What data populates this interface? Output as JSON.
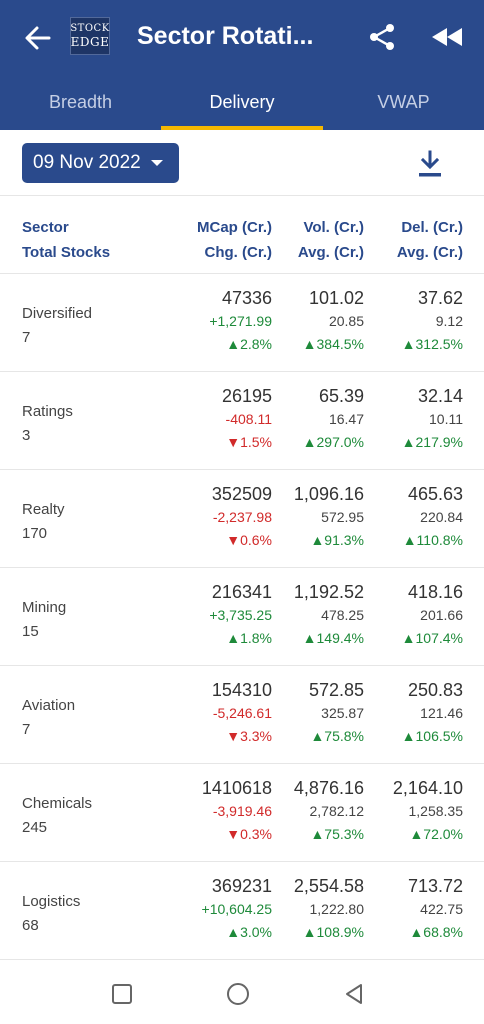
{
  "header": {
    "title": "Sector Rotati...",
    "logo_line1": "STOCK",
    "logo_line2": "EDGE",
    "icons": [
      "back-arrow-icon",
      "share-icon",
      "rewind-icon"
    ]
  },
  "tabs": [
    {
      "label": "Breadth",
      "active": false
    },
    {
      "label": "Delivery",
      "active": true
    },
    {
      "label": "VWAP",
      "active": false
    }
  ],
  "date": {
    "selected": "09 Nov 2022"
  },
  "colors": {
    "brand": "#2a4a8c",
    "accent": "#f5b800",
    "positive": "#1e8a3a",
    "negative": "#d12a2a"
  },
  "table": {
    "headers": {
      "sector": [
        "Sector",
        "Total Stocks"
      ],
      "mcap": [
        "MCap (Cr.)",
        "Chg. (Cr.)"
      ],
      "vol": [
        "Vol. (Cr.)",
        "Avg. (Cr.)"
      ],
      "del": [
        "Del. (Cr.)",
        "Avg. (Cr.)"
      ]
    },
    "rows": [
      {
        "sector": "Diversified",
        "stocks": "7",
        "mcap": "47336",
        "chg": "+1,271.99",
        "chg_dir": "pos",
        "mcap_pct": "▲2.8%",
        "mcap_dir": "pos",
        "vol": "101.02",
        "vol_avg": "20.85",
        "vol_pct": "▲384.5%",
        "vol_dir": "pos",
        "del": "37.62",
        "del_avg": "9.12",
        "del_pct": "▲312.5%",
        "del_dir": "pos"
      },
      {
        "sector": "Ratings",
        "stocks": "3",
        "mcap": "26195",
        "chg": "-408.11",
        "chg_dir": "neg",
        "mcap_pct": "▼1.5%",
        "mcap_dir": "neg",
        "vol": "65.39",
        "vol_avg": "16.47",
        "vol_pct": "▲297.0%",
        "vol_dir": "pos",
        "del": "32.14",
        "del_avg": "10.11",
        "del_pct": "▲217.9%",
        "del_dir": "pos"
      },
      {
        "sector": "Realty",
        "stocks": "170",
        "mcap": "352509",
        "chg": "-2,237.98",
        "chg_dir": "neg",
        "mcap_pct": "▼0.6%",
        "mcap_dir": "neg",
        "vol": "1,096.16",
        "vol_avg": "572.95",
        "vol_pct": "▲91.3%",
        "vol_dir": "pos",
        "del": "465.63",
        "del_avg": "220.84",
        "del_pct": "▲110.8%",
        "del_dir": "pos"
      },
      {
        "sector": "Mining",
        "stocks": "15",
        "mcap": "216341",
        "chg": "+3,735.25",
        "chg_dir": "pos",
        "mcap_pct": "▲1.8%",
        "mcap_dir": "pos",
        "vol": "1,192.52",
        "vol_avg": "478.25",
        "vol_pct": "▲149.4%",
        "vol_dir": "pos",
        "del": "418.16",
        "del_avg": "201.66",
        "del_pct": "▲107.4%",
        "del_dir": "pos"
      },
      {
        "sector": "Aviation",
        "stocks": "7",
        "mcap": "154310",
        "chg": "-5,246.61",
        "chg_dir": "neg",
        "mcap_pct": "▼3.3%",
        "mcap_dir": "neg",
        "vol": "572.85",
        "vol_avg": "325.87",
        "vol_pct": "▲75.8%",
        "vol_dir": "pos",
        "del": "250.83",
        "del_avg": "121.46",
        "del_pct": "▲106.5%",
        "del_dir": "pos"
      },
      {
        "sector": "Chemicals",
        "stocks": "245",
        "mcap": "1410618",
        "chg": "-3,919.46",
        "chg_dir": "neg",
        "mcap_pct": "▼0.3%",
        "mcap_dir": "neg",
        "vol": "4,876.16",
        "vol_avg": "2,782.12",
        "vol_pct": "▲75.3%",
        "vol_dir": "pos",
        "del": "2,164.10",
        "del_avg": "1,258.35",
        "del_pct": "▲72.0%",
        "del_dir": "pos"
      },
      {
        "sector": "Logistics",
        "stocks": "68",
        "mcap": "369231",
        "chg": "+10,604.25",
        "chg_dir": "pos",
        "mcap_pct": "▲3.0%",
        "mcap_dir": "pos",
        "vol": "2,554.58",
        "vol_avg": "1,222.80",
        "vol_pct": "▲108.9%",
        "vol_dir": "pos",
        "del": "713.72",
        "del_avg": "422.75",
        "del_pct": "▲68.8%",
        "del_dir": "pos"
      }
    ]
  }
}
